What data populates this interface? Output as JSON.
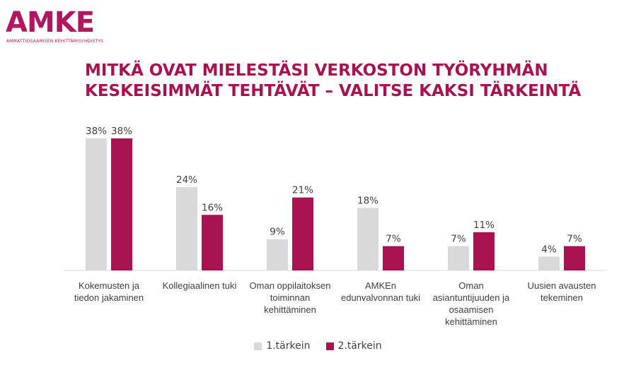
{
  "logo": {
    "word": "AMKE",
    "subtitle": "AMMATTIOSAAMISEN KEHITTÄMISYHDISTYS"
  },
  "title_line1": "MITKÄ OVAT MIELESTÄSI VERKOSTON TYÖRYHMÄN",
  "title_line2": "KESKEISIMMÄT TEHTÄVÄT – VALITSE KAKSI TÄRKEINTÄ",
  "colors": {
    "series1": "#d9d9d9",
    "series2": "#a8124f",
    "title": "#a8124f",
    "logo": "#b0175f",
    "text": "#404040",
    "axis": "#d9d9d9"
  },
  "chart_data": {
    "type": "bar",
    "title": "MITKÄ OVAT MIELESTÄSI VERKOSTON TYÖRYHMÄN KESKEISIMMÄT TEHTÄVÄT – VALITSE KAKSI TÄRKEINTÄ",
    "categories": [
      [
        "Kokemusten ja",
        "tiedon jakaminen"
      ],
      [
        "Kollegiaalinen tuki"
      ],
      [
        "Oman oppilaitoksen",
        "toiminnan",
        "kehittäminen"
      ],
      [
        "AMKEn",
        "edunvalvonnan tuki"
      ],
      [
        "Oman",
        "asiantuntijuuden ja",
        "osaamisen",
        "kehittäminen"
      ],
      [
        "Uusien avausten",
        "tekeminen"
      ]
    ],
    "series": [
      {
        "name": "1.tärkein",
        "values": [
          38,
          24,
          9,
          18,
          7,
          4
        ],
        "labels": [
          "38%",
          "24%",
          "9%",
          "18%",
          "7%",
          "4%"
        ]
      },
      {
        "name": "2.tärkein",
        "values": [
          38,
          16,
          21,
          7,
          11,
          7
        ],
        "labels": [
          "38%",
          "16%",
          "21%",
          "7%",
          "11%",
          "7%"
        ]
      }
    ],
    "ylim": [
      0,
      40
    ],
    "grid": false,
    "legend_position": "bottom",
    "xlabel": "",
    "ylabel": ""
  }
}
